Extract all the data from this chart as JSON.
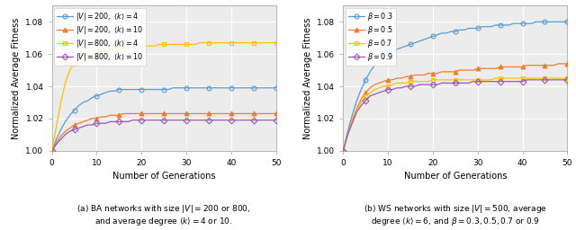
{
  "generations": [
    0,
    1,
    2,
    3,
    4,
    5,
    6,
    7,
    8,
    9,
    10,
    11,
    12,
    13,
    14,
    15,
    16,
    17,
    18,
    19,
    20,
    21,
    22,
    23,
    24,
    25,
    26,
    27,
    28,
    29,
    30,
    31,
    32,
    33,
    34,
    35,
    36,
    37,
    38,
    39,
    40,
    41,
    42,
    43,
    44,
    45,
    46,
    47,
    48,
    49,
    50
  ],
  "left_curves": [
    {
      "label": "$|V| = 200,\\ \\langle k \\rangle = 4$",
      "color": "#5b9bd5",
      "marker": "o",
      "values": [
        1.0,
        1.007,
        1.013,
        1.018,
        1.022,
        1.025,
        1.028,
        1.03,
        1.031,
        1.033,
        1.034,
        1.035,
        1.036,
        1.037,
        1.037,
        1.038,
        1.038,
        1.038,
        1.038,
        1.038,
        1.038,
        1.038,
        1.038,
        1.038,
        1.038,
        1.038,
        1.038,
        1.039,
        1.039,
        1.039,
        1.039,
        1.039,
        1.039,
        1.039,
        1.039,
        1.039,
        1.039,
        1.039,
        1.039,
        1.039,
        1.039,
        1.039,
        1.039,
        1.039,
        1.039,
        1.039,
        1.039,
        1.039,
        1.039,
        1.039,
        1.039
      ]
    },
    {
      "label": "$|V| = 200,\\ \\langle k \\rangle = 10$",
      "color": "#ed7d31",
      "marker": "^",
      "values": [
        1.0,
        1.005,
        1.009,
        1.012,
        1.014,
        1.016,
        1.017,
        1.018,
        1.019,
        1.02,
        1.02,
        1.021,
        1.021,
        1.022,
        1.022,
        1.022,
        1.023,
        1.023,
        1.023,
        1.023,
        1.023,
        1.023,
        1.023,
        1.023,
        1.023,
        1.023,
        1.023,
        1.023,
        1.023,
        1.023,
        1.023,
        1.023,
        1.023,
        1.023,
        1.023,
        1.023,
        1.023,
        1.023,
        1.023,
        1.023,
        1.023,
        1.023,
        1.023,
        1.023,
        1.023,
        1.023,
        1.023,
        1.023,
        1.023,
        1.023,
        1.023
      ]
    },
    {
      "label": "$|V| = 800,\\ \\langle k \\rangle = 4$",
      "color": "#ffc000",
      "marker": "s",
      "values": [
        1.0,
        1.015,
        1.03,
        1.042,
        1.05,
        1.054,
        1.057,
        1.059,
        1.06,
        1.061,
        1.062,
        1.062,
        1.063,
        1.063,
        1.063,
        1.064,
        1.064,
        1.064,
        1.064,
        1.064,
        1.065,
        1.065,
        1.065,
        1.065,
        1.066,
        1.066,
        1.066,
        1.066,
        1.066,
        1.066,
        1.066,
        1.066,
        1.066,
        1.067,
        1.067,
        1.067,
        1.067,
        1.067,
        1.067,
        1.067,
        1.067,
        1.067,
        1.067,
        1.067,
        1.067,
        1.067,
        1.067,
        1.067,
        1.067,
        1.067,
        1.067
      ]
    },
    {
      "label": "$|V| = 800,\\ \\langle k \\rangle = 10$",
      "color": "#9b59b6",
      "marker": "D",
      "values": [
        1.0,
        1.004,
        1.007,
        1.01,
        1.012,
        1.013,
        1.014,
        1.015,
        1.016,
        1.016,
        1.017,
        1.017,
        1.017,
        1.018,
        1.018,
        1.018,
        1.018,
        1.018,
        1.019,
        1.019,
        1.019,
        1.019,
        1.019,
        1.019,
        1.019,
        1.019,
        1.019,
        1.019,
        1.019,
        1.019,
        1.019,
        1.019,
        1.019,
        1.019,
        1.019,
        1.019,
        1.019,
        1.019,
        1.019,
        1.019,
        1.019,
        1.019,
        1.019,
        1.019,
        1.019,
        1.019,
        1.019,
        1.019,
        1.019,
        1.019,
        1.019
      ]
    }
  ],
  "right_curves": [
    {
      "label": "$\\beta = 0.3$",
      "color": "#5b9bd5",
      "marker": "o",
      "values": [
        1.0,
        1.012,
        1.022,
        1.031,
        1.038,
        1.044,
        1.049,
        1.053,
        1.056,
        1.058,
        1.06,
        1.061,
        1.063,
        1.064,
        1.065,
        1.066,
        1.067,
        1.068,
        1.069,
        1.07,
        1.071,
        1.072,
        1.073,
        1.073,
        1.074,
        1.074,
        1.075,
        1.075,
        1.076,
        1.076,
        1.076,
        1.077,
        1.077,
        1.077,
        1.078,
        1.078,
        1.078,
        1.078,
        1.079,
        1.079,
        1.079,
        1.079,
        1.079,
        1.08,
        1.08,
        1.08,
        1.08,
        1.08,
        1.08,
        1.08,
        1.08
      ]
    },
    {
      "label": "$\\beta = 0.5$",
      "color": "#ed7d31",
      "marker": "^",
      "values": [
        1.0,
        1.01,
        1.019,
        1.026,
        1.032,
        1.036,
        1.039,
        1.041,
        1.042,
        1.043,
        1.044,
        1.044,
        1.045,
        1.045,
        1.046,
        1.046,
        1.047,
        1.047,
        1.047,
        1.048,
        1.048,
        1.048,
        1.049,
        1.049,
        1.049,
        1.049,
        1.05,
        1.05,
        1.05,
        1.05,
        1.051,
        1.051,
        1.051,
        1.051,
        1.051,
        1.052,
        1.052,
        1.052,
        1.052,
        1.052,
        1.052,
        1.053,
        1.053,
        1.053,
        1.053,
        1.053,
        1.053,
        1.053,
        1.054,
        1.054,
        1.054
      ]
    },
    {
      "label": "$\\beta = 0.7$",
      "color": "#ffc000",
      "marker": "s",
      "values": [
        1.0,
        1.01,
        1.018,
        1.025,
        1.03,
        1.034,
        1.036,
        1.038,
        1.039,
        1.04,
        1.04,
        1.041,
        1.042,
        1.042,
        1.042,
        1.043,
        1.043,
        1.043,
        1.043,
        1.043,
        1.044,
        1.044,
        1.044,
        1.044,
        1.044,
        1.044,
        1.044,
        1.044,
        1.044,
        1.044,
        1.044,
        1.044,
        1.044,
        1.044,
        1.045,
        1.045,
        1.045,
        1.045,
        1.045,
        1.045,
        1.045,
        1.045,
        1.045,
        1.045,
        1.045,
        1.045,
        1.045,
        1.045,
        1.045,
        1.045,
        1.045
      ]
    },
    {
      "label": "$\\beta = 0.9$",
      "color": "#9b59b6",
      "marker": "D",
      "values": [
        1.0,
        1.01,
        1.017,
        1.024,
        1.028,
        1.031,
        1.034,
        1.035,
        1.036,
        1.037,
        1.038,
        1.038,
        1.039,
        1.039,
        1.04,
        1.04,
        1.04,
        1.041,
        1.041,
        1.041,
        1.041,
        1.041,
        1.042,
        1.042,
        1.042,
        1.042,
        1.042,
        1.042,
        1.042,
        1.043,
        1.043,
        1.043,
        1.043,
        1.043,
        1.043,
        1.043,
        1.043,
        1.043,
        1.043,
        1.043,
        1.043,
        1.044,
        1.044,
        1.044,
        1.044,
        1.044,
        1.044,
        1.044,
        1.044,
        1.044,
        1.044
      ]
    }
  ],
  "ylabel": "Normalized Average Fitness",
  "xlabel": "Number of Generations",
  "left_caption": "(a) BA networks with size $|V| = 200$ or 800,\nand average degree $\\langle k \\rangle = 4$ or 10.",
  "right_caption": "(b) WS networks with size $|V| = 500$, average\ndegree $\\langle k \\rangle = 6$, and $\\beta = 0.3, 0.5, 0.7$ or 0.9",
  "ylim": [
    1.0,
    1.09
  ],
  "xlim": [
    0,
    50
  ],
  "yticks": [
    1.0,
    1.02,
    1.04,
    1.06,
    1.08
  ],
  "xticks": [
    0,
    10,
    20,
    30,
    40,
    50
  ],
  "marker_every": 5,
  "marker_size": 3.5,
  "linewidth": 0.9,
  "bg_color": "#ececec"
}
